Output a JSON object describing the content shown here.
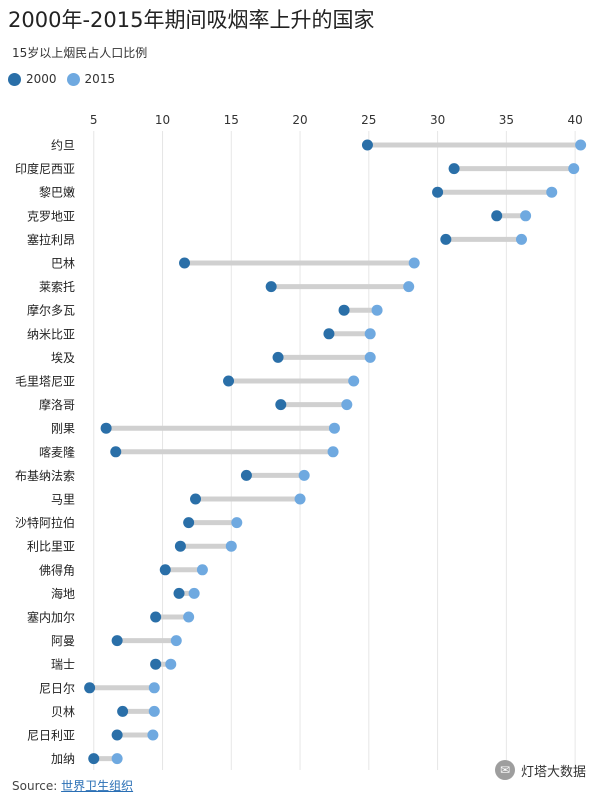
{
  "title": "2000年-2015年期间吸烟率上升的国家",
  "subtitle": "15岁以上烟民占人口比例",
  "legend": [
    {
      "label": "2000",
      "color": "#2a6fa8"
    },
    {
      "label": "2015",
      "color": "#6fa9e0"
    }
  ],
  "source": {
    "prefix": "Source: ",
    "link": "世界卫生组织"
  },
  "watermark": "灯塔大数据",
  "chart_data": {
    "type": "dumbbell",
    "title": "2000年-2015年期间吸烟率上升的国家",
    "subtitle": "15岁以上烟民占人口比例",
    "xlim": [
      4,
      40.5
    ],
    "xticks": [
      5,
      10,
      15,
      20,
      25,
      30,
      35,
      40
    ],
    "grid": true,
    "legend_position": "top-left",
    "colors": {
      "2000": "#2a6fa8",
      "2015": "#6fa9e0",
      "connector": "#d0d0d0"
    },
    "series": [
      {
        "name": "2000",
        "values": [
          24.9,
          31.2,
          30.0,
          34.3,
          30.6,
          11.6,
          17.9,
          23.2,
          22.1,
          18.4,
          14.8,
          18.6,
          5.9,
          6.6,
          16.1,
          12.4,
          11.9,
          11.3,
          10.2,
          11.2,
          9.5,
          6.7,
          9.5,
          4.7,
          7.1,
          6.7,
          5.0
        ]
      },
      {
        "name": "2015",
        "values": [
          40.4,
          39.9,
          38.3,
          36.4,
          36.1,
          28.3,
          27.9,
          25.6,
          25.1,
          25.1,
          23.9,
          23.4,
          22.5,
          22.4,
          20.3,
          20.0,
          15.4,
          15.0,
          12.9,
          12.3,
          11.9,
          11.0,
          10.6,
          9.4,
          9.4,
          9.3,
          6.7
        ]
      }
    ],
    "categories": [
      "约旦",
      "印度尼西亚",
      "黎巴嫩",
      "克罗地亚",
      "塞拉利昂",
      "巴林",
      "莱索托",
      "摩尔多瓦",
      "纳米比亚",
      "埃及",
      "毛里塔尼亚",
      "摩洛哥",
      "刚果",
      "喀麦隆",
      "布基纳法索",
      "马里",
      "沙特阿拉伯",
      "利比里亚",
      "佛得角",
      "海地",
      "塞内加尔",
      "阿曼",
      "瑞士",
      "尼日尔",
      "贝林",
      "尼日利亚",
      "加纳"
    ]
  }
}
